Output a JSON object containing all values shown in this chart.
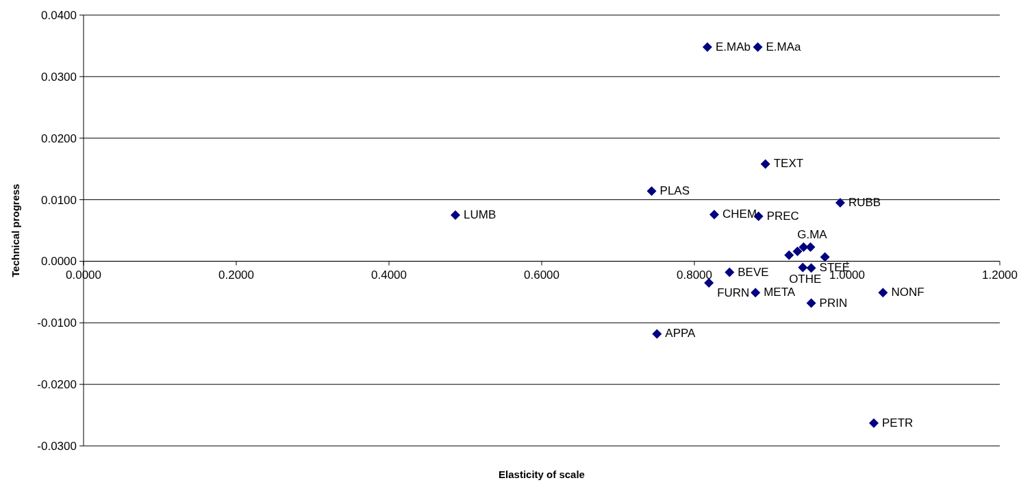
{
  "chart_data": {
    "type": "scatter",
    "xlabel": "Elasticity of scale",
    "ylabel": "Technical progress",
    "x": [
      0.817,
      0.883,
      0.893,
      0.744,
      0.991,
      0.487,
      0.826,
      0.884,
      0.846,
      0.819,
      0.88,
      1.047,
      0.953,
      0.751,
      1.035,
      0.924,
      0.935,
      0.943,
      0.952,
      0.971,
      0.942,
      0.953
    ],
    "series": [
      {
        "color": "#000080",
        "values": [
          0.0348,
          0.0348,
          0.0158,
          0.0114,
          0.0095,
          0.0075,
          0.0076,
          0.0073,
          -0.0018,
          -0.0035,
          -0.0051,
          -0.0051,
          -0.0068,
          -0.0118,
          -0.0263,
          0.001,
          0.0016,
          0.0023,
          0.0023,
          0.0007,
          -0.001,
          -0.0011
        ]
      }
    ],
    "marker": "diamond",
    "grid": "y",
    "xlim": [
      0,
      1.2
    ],
    "xticks": [
      {
        "value": 0,
        "label": "0.0000"
      },
      {
        "value": 0.2,
        "label": "0.2000"
      },
      {
        "value": 0.4,
        "label": "0.4000"
      },
      {
        "value": 0.6,
        "label": "0.6000"
      },
      {
        "value": 0.8,
        "label": "0.8000"
      },
      {
        "value": 1,
        "label": "1.0000"
      },
      {
        "value": 1.2,
        "label": "1.2000"
      }
    ],
    "ylim": [
      -0.03,
      0.04
    ],
    "yticks": [
      {
        "value": -0.03,
        "label": "-0.0300"
      },
      {
        "value": -0.02,
        "label": "-0.0200"
      },
      {
        "value": -0.01,
        "label": "-0.0100"
      },
      {
        "value": 0,
        "label": "0.0000"
      },
      {
        "value": 0.01,
        "label": "0.0100"
      },
      {
        "value": 0.02,
        "label": "0.0200"
      },
      {
        "value": 0.03,
        "label": "0.0300"
      },
      {
        "value": 0.04,
        "label": "0.0400"
      }
    ],
    "annotations": [
      {
        "text": "E.MAb",
        "x": 0.817,
        "y": 0.0348
      },
      {
        "text": "E.MAa",
        "x": 0.883,
        "y": 0.0348
      },
      {
        "text": "TEXT",
        "x": 0.893,
        "y": 0.0158
      },
      {
        "text": "PLAS",
        "x": 0.744,
        "y": 0.0114
      },
      {
        "text": "RUBB",
        "x": 0.991,
        "y": 0.0095
      },
      {
        "text": "LUMB",
        "x": 0.487,
        "y": 0.0075
      },
      {
        "text": "CHEM",
        "x": 0.826,
        "y": 0.0076
      },
      {
        "text": "PREC",
        "x": 0.884,
        "y": 0.0073
      },
      {
        "text": "BEVE",
        "x": 0.846,
        "y": -0.0018
      },
      {
        "text": "FURN",
        "x": 0.819,
        "y": -0.0035
      },
      {
        "text": "META",
        "x": 0.88,
        "y": -0.0051
      },
      {
        "text": "NONF",
        "x": 1.047,
        "y": -0.0051
      },
      {
        "text": "PRIN",
        "x": 0.953,
        "y": -0.0068
      },
      {
        "text": "APPA",
        "x": 0.751,
        "y": -0.0118
      },
      {
        "text": "PETR",
        "x": 1.035,
        "y": -0.0263
      },
      {
        "text": "G.MA",
        "x": 0.924,
        "y": 0.001
      },
      {
        "text": "OTHE",
        "x": 0.942,
        "y": -0.001
      },
      {
        "text": "STEE",
        "x": 0.953,
        "y": -0.0011
      }
    ]
  }
}
